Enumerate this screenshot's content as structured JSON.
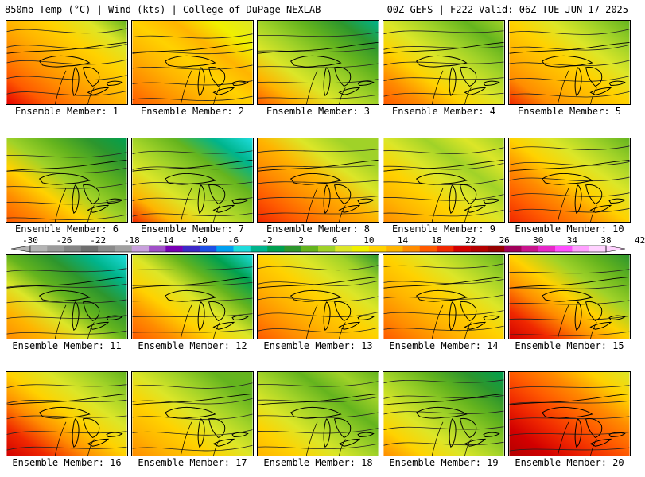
{
  "header": {
    "left": "850mb Temp (°C) | Wind (kts) | College of DuPage NEXLAB",
    "right": "00Z GEFS | F222 Valid: 06Z TUE JUN 17 2025"
  },
  "colorbar": {
    "labels": [
      "-30",
      "-26",
      "-22",
      "-18",
      "-14",
      "-10",
      "-6",
      "-2",
      "2",
      "6",
      "10",
      "14",
      "18",
      "22",
      "26",
      "30",
      "34",
      "38",
      "42"
    ],
    "colors": [
      "#b4b4b4",
      "#9b9b9b",
      "#848484",
      "#6e6e6e",
      "#8a8a8a",
      "#a0a0a0",
      "#c8a0dc",
      "#a050c8",
      "#7800b4",
      "#3c28c8",
      "#1e50e6",
      "#00a0f0",
      "#1edcdc",
      "#00b48c",
      "#00a050",
      "#2d962d",
      "#64b41e",
      "#a0d228",
      "#dce628",
      "#f0f000",
      "#ffd200",
      "#ffb400",
      "#ff8c00",
      "#ff5a00",
      "#f02800",
      "#d20000",
      "#b40000",
      "#960000",
      "#a0005a",
      "#c8148c",
      "#e628c8",
      "#ff50ff",
      "#ffa0ff",
      "#ffd2ff"
    ]
  },
  "map_icons": {
    "panel": "temperature-map",
    "lakes": "great-lakes-outline"
  },
  "panels": [
    {
      "label": "Ensemble Member: 1",
      "scheme": [
        "#e60000",
        "#ff5a00",
        "#ff8c00",
        "#ffb400",
        "#ffd200",
        "#dce628",
        "#64b41e"
      ]
    },
    {
      "label": "Ensemble Member: 2",
      "scheme": [
        "#ff5a00",
        "#ff8c00",
        "#ffb400",
        "#ffd200",
        "#ffb400",
        "#f0f000",
        "#dce628"
      ]
    },
    {
      "label": "Ensemble Member: 3",
      "scheme": [
        "#ff5a00",
        "#ffb400",
        "#dce628",
        "#a0d228",
        "#64b41e",
        "#2d962d",
        "#00b48c"
      ]
    },
    {
      "label": "Ensemble Member: 4",
      "scheme": [
        "#ff5a00",
        "#ff8c00",
        "#ffd200",
        "#dce628",
        "#a0d228",
        "#64b41e",
        "#a0d228"
      ]
    },
    {
      "label": "Ensemble Member: 5",
      "scheme": [
        "#f02800",
        "#ff8c00",
        "#ffb400",
        "#ffd200",
        "#dce628",
        "#a0d228",
        "#64b41e"
      ]
    },
    {
      "label": "Ensemble Member: 6",
      "scheme": [
        "#ff5a00",
        "#ff8c00",
        "#ffd200",
        "#a0d228",
        "#64b41e",
        "#2d962d",
        "#00a050"
      ]
    },
    {
      "label": "Ensemble Member: 7",
      "scheme": [
        "#f02800",
        "#ffb400",
        "#dce628",
        "#a0d228",
        "#64b41e",
        "#00b48c",
        "#1edcdc"
      ]
    },
    {
      "label": "Ensemble Member: 8",
      "scheme": [
        "#f02800",
        "#ff5a00",
        "#ff8c00",
        "#ffb400",
        "#dce628",
        "#a0d228",
        "#a0d228"
      ]
    },
    {
      "label": "Ensemble Member: 9",
      "scheme": [
        "#ff8c00",
        "#ffb400",
        "#ffd200",
        "#dce628",
        "#a0d228",
        "#dce628",
        "#a0d228"
      ]
    },
    {
      "label": "Ensemble Member: 10",
      "scheme": [
        "#f02800",
        "#ff5a00",
        "#ff8c00",
        "#ffd200",
        "#dce628",
        "#a0d228",
        "#64b41e"
      ]
    },
    {
      "label": "Ensemble Member: 11",
      "scheme": [
        "#ff8c00",
        "#ffb400",
        "#dce628",
        "#64b41e",
        "#2d962d",
        "#00b48c",
        "#1edcdc"
      ]
    },
    {
      "label": "Ensemble Member: 12",
      "scheme": [
        "#ff5a00",
        "#ff8c00",
        "#ffd200",
        "#dce628",
        "#64b41e",
        "#00a050",
        "#1edcdc"
      ]
    },
    {
      "label": "Ensemble Member: 13",
      "scheme": [
        "#ff5a00",
        "#ff8c00",
        "#ffb400",
        "#ffd200",
        "#dce628",
        "#a0d228",
        "#2d962d"
      ]
    },
    {
      "label": "Ensemble Member: 14",
      "scheme": [
        "#ff5a00",
        "#ff8c00",
        "#ffb400",
        "#ffd200",
        "#dce628",
        "#a0d228",
        "#64b41e"
      ]
    },
    {
      "label": "Ensemble Member: 15",
      "scheme": [
        "#d20000",
        "#f02800",
        "#ff8c00",
        "#ffd200",
        "#a0d228",
        "#64b41e",
        "#2d962d"
      ]
    },
    {
      "label": "Ensemble Member: 16",
      "scheme": [
        "#d20000",
        "#f02800",
        "#ff8c00",
        "#ffd200",
        "#dce628",
        "#a0d228",
        "#64b41e"
      ]
    },
    {
      "label": "Ensemble Member: 17",
      "scheme": [
        "#ff8c00",
        "#ffb400",
        "#ffd200",
        "#dce628",
        "#a0d228",
        "#64b41e",
        "#64b41e"
      ]
    },
    {
      "label": "Ensemble Member: 18",
      "scheme": [
        "#ffb400",
        "#ffd200",
        "#dce628",
        "#a0d228",
        "#64b41e",
        "#a0d228",
        "#64b41e"
      ]
    },
    {
      "label": "Ensemble Member: 19",
      "scheme": [
        "#ff8c00",
        "#ffd200",
        "#dce628",
        "#a0d228",
        "#64b41e",
        "#2d962d",
        "#00a050"
      ]
    },
    {
      "label": "Ensemble Member: 20",
      "scheme": [
        "#b40000",
        "#d20000",
        "#f02800",
        "#ff5a00",
        "#ff8c00",
        "#ffd200",
        "#dce628"
      ]
    }
  ]
}
